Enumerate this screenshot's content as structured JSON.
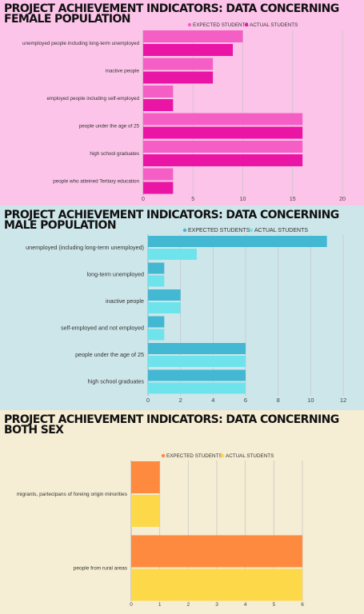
{
  "panels": [
    {
      "title_line1": "PROJECT ACHIEVEMENT INDICATORS: DATA CONCERNING",
      "title_line2": "FEMALE POPULATION",
      "background": "#fcc4e9"
    },
    {
      "title_line1": "PROJECT ACHIEVEMENT INDICATORS: DATA CONCERNING",
      "title_line2": "MALE POPULATION",
      "background": "#cde6ea"
    },
    {
      "title_line1": "PROJECT ACHIEVEMENT INDICATORS: DATA CONCERNING",
      "title_line2": "BOTH SEX",
      "background": "#f5edd4"
    }
  ],
  "chart_data": [
    {
      "type": "bar",
      "orientation": "horizontal",
      "title": "PROJECT ACHIEVEMENT INDICATORS: DATA CONCERNING FEMALE POPULATION",
      "categories": [
        "unemployed people including long-term unemployed",
        "inactive people",
        "employed people including self-employed",
        "people under the age of 25",
        "high school graduates",
        "people who atteined Tertiary education"
      ],
      "series": [
        {
          "name": "EXPECTED STUDENTS",
          "color": "#f55fc5",
          "values": [
            10,
            7,
            3,
            16,
            16,
            3
          ]
        },
        {
          "name": "ACTUAL STUDENTS",
          "color": "#ea15a4",
          "values": [
            9,
            7,
            3,
            16,
            16,
            3
          ]
        }
      ],
      "xlim": [
        0,
        20
      ],
      "xticks": [
        0,
        5,
        10,
        15,
        20
      ],
      "grid": true,
      "legend": "top-right"
    },
    {
      "type": "bar",
      "orientation": "horizontal",
      "title": "PROJECT ACHIEVEMENT INDICATORS: DATA CONCERNING MALE POPULATION",
      "categories": [
        "unemployed (including long-term unemployed)",
        "long-term unemployed",
        "inactive people",
        "self-employed and not employed",
        "people under the age of 25",
        "high school graduates"
      ],
      "series": [
        {
          "name": "EXPECTED STUDENTS",
          "color": "#42b8d3",
          "values": [
            11,
            1,
            2,
            1,
            6,
            6
          ]
        },
        {
          "name": "ACTUAL STUDENTS",
          "color": "#6fe3ec",
          "values": [
            3,
            1,
            2,
            1,
            6,
            6
          ]
        }
      ],
      "xlim": [
        0,
        12
      ],
      "xticks": [
        0,
        2,
        4,
        6,
        8,
        10,
        12
      ],
      "grid": true,
      "legend": "top-right"
    },
    {
      "type": "bar",
      "orientation": "horizontal",
      "title": "PROJECT ACHIEVEMENT INDICATORS: DATA CONCERNING BOTH SEX",
      "categories": [
        "migrants, partecipans of foreing origin minorities",
        "people from rural areas"
      ],
      "series": [
        {
          "name": "EXPECTED STUDENTS",
          "color": "#fe8a40",
          "values": [
            1,
            6
          ]
        },
        {
          "name": "ACTUAL STUDENTS",
          "color": "#fdd94a",
          "values": [
            1,
            6
          ]
        }
      ],
      "xlim": [
        0,
        6
      ],
      "xticks": [
        0,
        1,
        2,
        3,
        4,
        5,
        6
      ],
      "grid": true,
      "legend": "top-right"
    }
  ]
}
